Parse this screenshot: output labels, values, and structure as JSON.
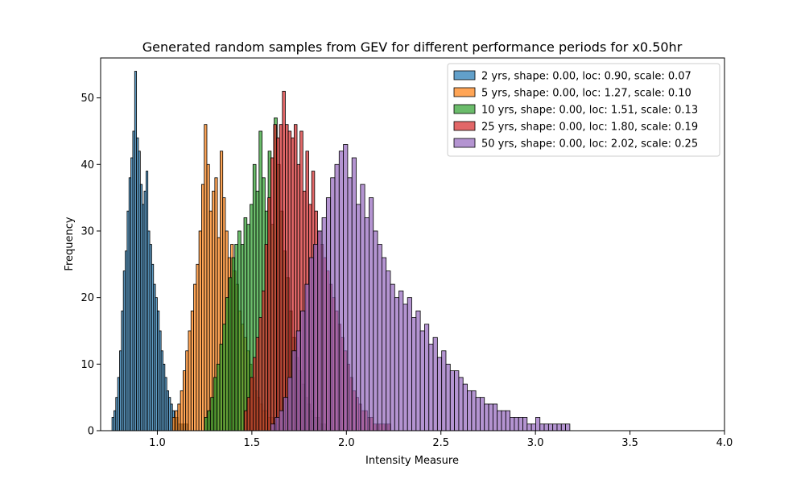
{
  "chart_data": {
    "type": "bar",
    "title": "Generated random samples from GEV for different performance periods for x0.50hr",
    "xlabel": "Intensity Measure",
    "ylabel": "Frequency",
    "xlim": [
      0.7,
      4.0
    ],
    "ylim": [
      0,
      56
    ],
    "xticks": [
      "1.0",
      "1.5",
      "2.0",
      "2.5",
      "3.0",
      "3.5",
      "4.0"
    ],
    "yticks": [
      "0",
      "10",
      "20",
      "30",
      "40",
      "50"
    ],
    "grid": false,
    "legend_position": "top-right",
    "series": [
      {
        "name": "2 yrs, shape: 0.00, loc: 0.90, scale: 0.07",
        "color": "#1f77b4",
        "bin_start": 0.76,
        "bin_width": 0.01,
        "counts": [
          2,
          3,
          5,
          8,
          12,
          18,
          24,
          27,
          33,
          38,
          41,
          45,
          54,
          44,
          42,
          37,
          34,
          36,
          39,
          30,
          28,
          25,
          22,
          20,
          18,
          15,
          12,
          10,
          8,
          6,
          5,
          4,
          3,
          2,
          2,
          1,
          1,
          1,
          1,
          1
        ]
      },
      {
        "name": "5 yrs, shape: 0.00, loc: 1.27, scale: 0.10",
        "color": "#ff7f0e",
        "bin_start": 1.08,
        "bin_width": 0.014,
        "counts": [
          2,
          3,
          4,
          6,
          9,
          12,
          15,
          18,
          22,
          25,
          30,
          37,
          46,
          40,
          33,
          36,
          38,
          29,
          42,
          35,
          30,
          26,
          28,
          24,
          22,
          18,
          16,
          14,
          12,
          10,
          8,
          6,
          5,
          4,
          3,
          3,
          2,
          2,
          1,
          1
        ]
      },
      {
        "name": "10 yrs, shape: 0.00, loc: 1.51, scale: 0.13",
        "color": "#2ca02c",
        "bin_start": 1.25,
        "bin_width": 0.016,
        "counts": [
          2,
          3,
          5,
          8,
          10,
          13,
          16,
          20,
          23,
          26,
          28,
          30,
          28,
          32,
          31,
          34,
          40,
          36,
          45,
          38,
          33,
          42,
          31,
          47,
          40,
          33,
          27,
          23,
          18,
          14,
          11,
          9,
          7,
          5,
          4,
          3,
          2,
          2,
          1,
          1
        ]
      },
      {
        "name": "25 yrs, shape: 0.00, loc: 1.80, scale: 0.19",
        "color": "#d62728",
        "bin_start": 1.46,
        "bin_width": 0.0155,
        "counts": [
          3,
          5,
          8,
          11,
          14,
          17,
          21,
          28,
          35,
          41,
          46,
          44,
          46,
          51,
          46,
          45,
          44,
          46,
          40,
          45,
          36,
          42,
          34,
          39,
          33,
          30,
          28,
          26,
          24,
          22,
          20,
          18,
          16,
          14,
          12,
          10,
          8,
          6,
          5,
          4,
          3,
          3,
          2,
          2,
          1,
          1,
          1,
          1,
          1,
          1
        ]
      },
      {
        "name": "50 yrs, shape: 0.00, loc: 2.02, scale: 0.25",
        "color": "#9467bd",
        "bin_start": 1.6,
        "bin_width": 0.0226,
        "counts": [
          1,
          2,
          3,
          5,
          8,
          12,
          15,
          18,
          22,
          26,
          28,
          30,
          32,
          35,
          38,
          40,
          42,
          43,
          38,
          41,
          34,
          37,
          32,
          35,
          30,
          28,
          26,
          24,
          22,
          20,
          21,
          19,
          20,
          17,
          18,
          15,
          16,
          13,
          14,
          11,
          12,
          10,
          9,
          9,
          8,
          7,
          6,
          6,
          5,
          5,
          4,
          4,
          4,
          3,
          3,
          3,
          2,
          2,
          2,
          2,
          1,
          1,
          2,
          1,
          1,
          1,
          1,
          1,
          1,
          1
        ]
      }
    ]
  }
}
